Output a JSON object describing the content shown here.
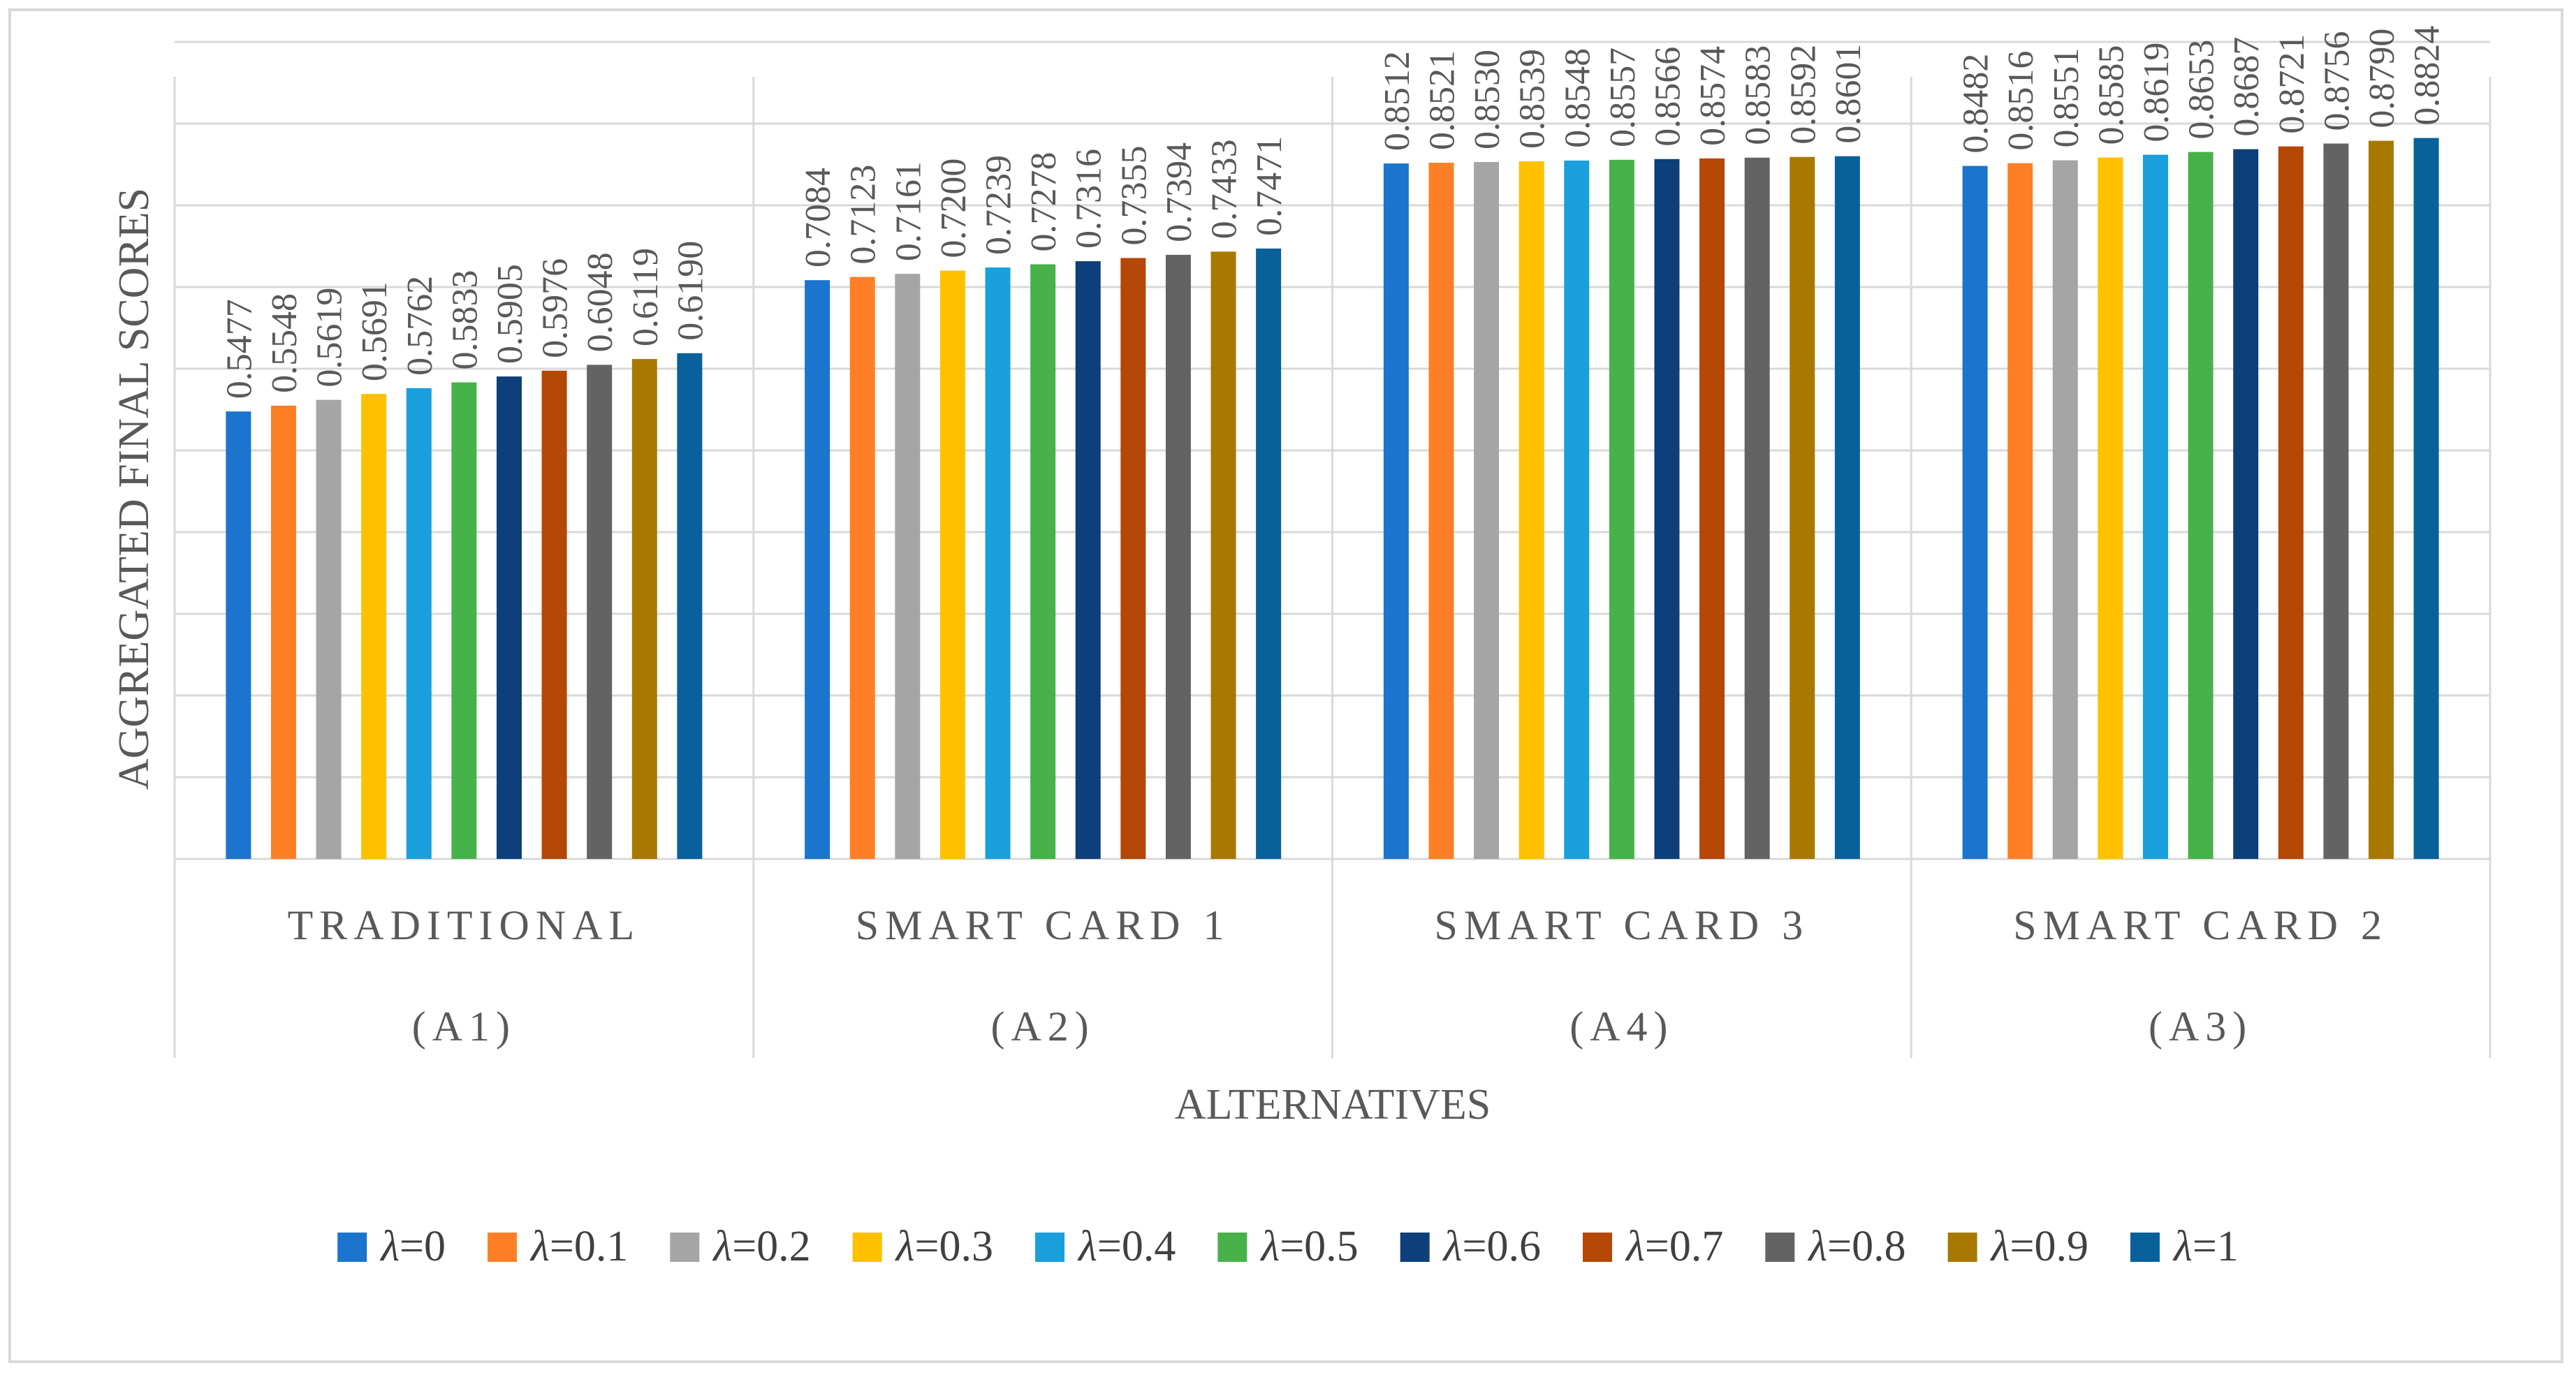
{
  "chart_data": {
    "type": "bar",
    "title": "",
    "xlabel": "ALTERNATIVES",
    "ylabel": "AGGREGATED FINAL SCORES",
    "ylim": [
      0,
      1
    ],
    "grid": true,
    "legend_position": "bottom",
    "categories": [
      {
        "name": "TRADITIONAL",
        "code": "(A1)"
      },
      {
        "name": "SMART CARD 1",
        "code": "(A2)"
      },
      {
        "name": "SMART CARD 3",
        "code": "(A4)"
      },
      {
        "name": "SMART CARD 2",
        "code": "(A3)"
      }
    ],
    "series": [
      {
        "name": "λ=0",
        "color": "#1B74CD",
        "values": [
          0.5477,
          0.7084,
          0.8512,
          0.8482
        ],
        "labels": [
          "0.5477",
          "0.7084",
          "0.8512",
          "0.8482"
        ]
      },
      {
        "name": "λ=0.1",
        "color": "#FF7F27",
        "values": [
          0.5548,
          0.7123,
          0.8521,
          0.8516
        ],
        "labels": [
          "0.5548",
          "0.7123",
          "0.8521",
          "0.8516"
        ]
      },
      {
        "name": "λ=0.2",
        "color": "#A5A5A5",
        "values": [
          0.5619,
          0.7161,
          0.853,
          0.8551
        ],
        "labels": [
          "0.5619",
          "0.7161",
          "0.8530",
          "0.8551"
        ]
      },
      {
        "name": "λ=0.3",
        "color": "#FFC000",
        "values": [
          0.5691,
          0.72,
          0.8539,
          0.8585
        ],
        "labels": [
          "0.5691",
          "0.7200",
          "0.8539",
          "0.8585"
        ]
      },
      {
        "name": "λ=0.4",
        "color": "#1A9FDD",
        "values": [
          0.5762,
          0.7239,
          0.8548,
          0.8619
        ],
        "labels": [
          "0.5762",
          "0.7239",
          "0.8548",
          "0.8619"
        ]
      },
      {
        "name": "λ=0.5",
        "color": "#47B24A",
        "values": [
          0.5833,
          0.7278,
          0.8557,
          0.8653
        ],
        "labels": [
          "0.5833",
          "0.7278",
          "0.8557",
          "0.8653"
        ]
      },
      {
        "name": "λ=0.6",
        "color": "#0D3F7A",
        "values": [
          0.5905,
          0.7316,
          0.8566,
          0.8687
        ],
        "labels": [
          "0.5905",
          "0.7316",
          "0.8566",
          "0.8687"
        ]
      },
      {
        "name": "λ=0.7",
        "color": "#B54707",
        "values": [
          0.5976,
          0.7355,
          0.8574,
          0.8721
        ],
        "labels": [
          "0.5976",
          "0.7355",
          "0.8574",
          "0.8721"
        ]
      },
      {
        "name": "λ=0.8",
        "color": "#636363",
        "values": [
          0.6048,
          0.7394,
          0.8583,
          0.8756
        ],
        "labels": [
          "0.6048",
          "0.7394",
          "0.8583",
          "0.8756"
        ]
      },
      {
        "name": "λ=0.9",
        "color": "#A87900",
        "values": [
          0.6119,
          0.7433,
          0.8592,
          0.879
        ],
        "labels": [
          "0.6119",
          "0.7433",
          "0.8592",
          "0.8790"
        ]
      },
      {
        "name": "λ=1",
        "color": "#08619A",
        "values": [
          0.619,
          0.7471,
          0.8601,
          0.8824
        ],
        "labels": [
          "0.6190",
          "0.7471",
          "0.8601",
          "0.8824"
        ]
      }
    ]
  }
}
